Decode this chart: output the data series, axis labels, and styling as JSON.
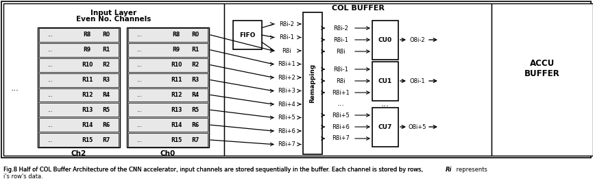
{
  "title_line1": "Input Layer",
  "title_line2": "Even No. Channels",
  "col_buffer_title": "COL BUFFER",
  "accu_buffer_title": "ACCU\nBUFFER",
  "caption1": "Fig.8 Half of COL Buffer Architecture of the CNN accelerator, input channels are stored sequentially in the buffer. Each channel is stored by rows, ",
  "caption_italic": "Ri",
  "caption2": " represents",
  "caption3": "i’s row’s data.",
  "input_rows": [
    [
      "R8",
      "R0"
    ],
    [
      "R9",
      "R1"
    ],
    [
      "R10",
      "R2"
    ],
    [
      "R11",
      "R3"
    ],
    [
      "R12",
      "R4"
    ],
    [
      "R13",
      "R5"
    ],
    [
      "R14",
      "R6"
    ],
    [
      "R15",
      "R7"
    ]
  ],
  "col_left_labels": [
    "R8i-2",
    "R8i-1",
    "R8i",
    "R8i+1",
    "R8i+2",
    "R8i+3",
    "R8i+4",
    "R8i+5",
    "R8i+6",
    "R8i+7"
  ],
  "col_right_labels_cu0": [
    "R8i-2",
    "R8i-1",
    "R8i"
  ],
  "col_right_labels_cu1": [
    "R8i-1",
    "R8i",
    "R8i+1"
  ],
  "col_right_labels_cu7": [
    "R8i+5",
    "R8i+6",
    "R8i+7"
  ],
  "cu_labels": [
    "CU0",
    "CU1",
    "CU7"
  ],
  "o_labels": [
    "O8i-2",
    "O8i-1",
    "O8i+5"
  ],
  "ch_labels": [
    "Ch2",
    "Ch0"
  ],
  "fifo_label": "FIFO",
  "remapping_label": "Remapping",
  "bg_color": "#ffffff",
  "grid_color": "#cccccc",
  "border_color": "#000000"
}
